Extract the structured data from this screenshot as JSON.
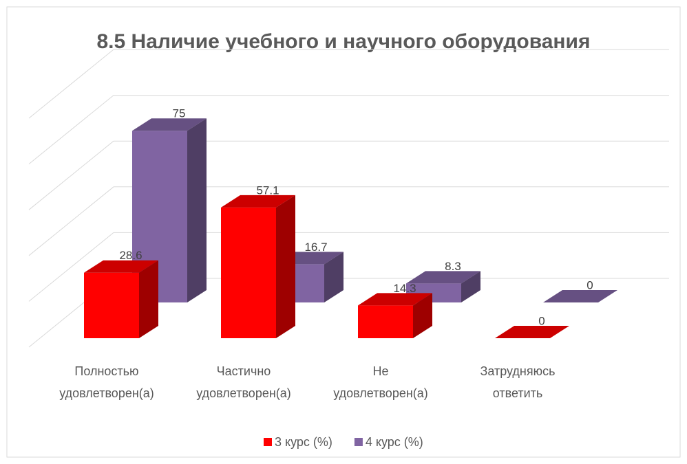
{
  "chart_data": {
    "type": "bar3d",
    "title": "8.5 Наличие учебного и научного оборудования",
    "categories": [
      "Полностью удовлетворен(а)",
      "Частично удовлетворен(а)",
      "Не удовлетворен(а)",
      "Затрудняюсь ответить"
    ],
    "series": [
      {
        "name": "3 курс (%)",
        "color": "#ff0000",
        "values": [
          28.6,
          57.1,
          14.3,
          0
        ]
      },
      {
        "name": "4 курс (%)",
        "color": "#8064a2",
        "values": [
          75,
          16.7,
          8.3,
          0
        ]
      }
    ],
    "ylim": [
      0,
      100
    ],
    "yticks": [
      0,
      20,
      40,
      60,
      80,
      100
    ],
    "grid": true,
    "legend": "bottom"
  }
}
